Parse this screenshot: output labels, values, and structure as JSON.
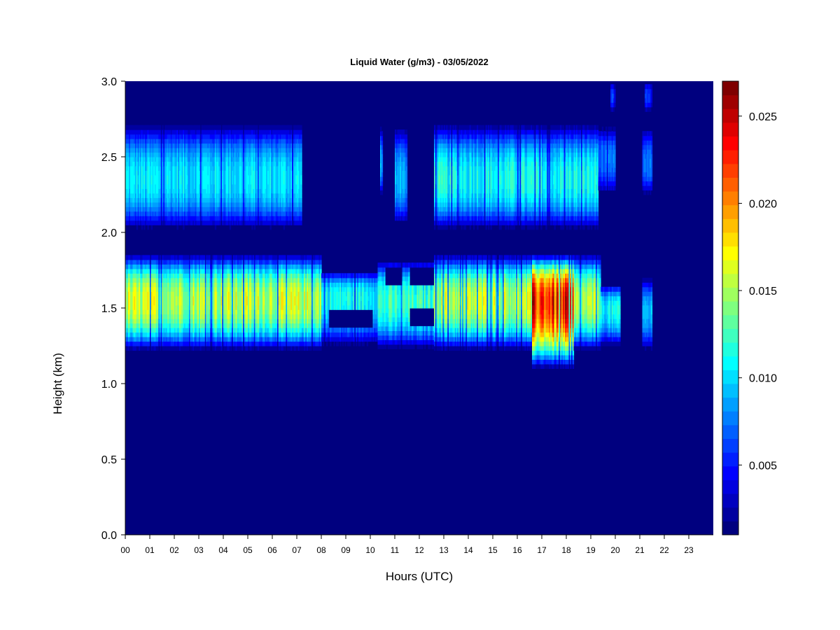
{
  "chart_data": {
    "type": "heatmap",
    "title": "Liquid Water (g/m3) - 03/05/2022",
    "xlabel": "Hours (UTC)",
    "ylabel": "Height (km)",
    "xlim": [
      0,
      24
    ],
    "ylim": [
      0.0,
      3.0
    ],
    "x_tick_labels": [
      "00",
      "01",
      "02",
      "03",
      "04",
      "05",
      "06",
      "07",
      "08",
      "09",
      "10",
      "11",
      "12",
      "13",
      "14",
      "15",
      "16",
      "17",
      "18",
      "19",
      "20",
      "21",
      "22",
      "23"
    ],
    "y_tick_labels": [
      "0.0",
      "0.5",
      "1.0",
      "1.5",
      "2.0",
      "2.5",
      "3.0"
    ],
    "y_ticks": [
      0.0,
      0.5,
      1.0,
      1.5,
      2.0,
      2.5,
      3.0
    ],
    "colorbar": {
      "min": 0.001,
      "max": 0.027,
      "levels": 26,
      "tick_values": [
        0.005,
        0.01,
        0.015,
        0.02,
        0.025
      ],
      "tick_labels": [
        "0.005",
        "0.010",
        "0.015",
        "0.020",
        "0.025"
      ],
      "colors": [
        "#00007f",
        "#00009f",
        "#0000bf",
        "#0000df",
        "#0000ff",
        "#001fff",
        "#003fff",
        "#005fff",
        "#007fff",
        "#009fff",
        "#00bfff",
        "#00dfff",
        "#00ffff",
        "#1fffdf",
        "#3fffbf",
        "#5fff9f",
        "#7fff7f",
        "#9fff5f",
        "#bfff3f",
        "#dfff1f",
        "#ffff00",
        "#ffdf00",
        "#ffbf00",
        "#ff9f00",
        "#ff7f00",
        "#ff5f00",
        "#ff3f00",
        "#ff1f00",
        "#ff0000",
        "#df0000",
        "#bf0000",
        "#9f0000",
        "#7f0000"
      ]
    },
    "background_color": "#00007f",
    "cloud_layers": [
      {
        "name": "upper",
        "hour_start": 0.0,
        "hour_end": 7.2,
        "height_bottom": 2.02,
        "height_top": 2.72,
        "peak_height": 2.35,
        "peak_value": 0.0115
      },
      {
        "name": "upper",
        "hour_start": 10.4,
        "hour_end": 10.5,
        "height_bottom": 2.25,
        "height_top": 2.7,
        "peak_height": 2.45,
        "peak_value": 0.01
      },
      {
        "name": "upper",
        "hour_start": 11.0,
        "hour_end": 11.5,
        "height_bottom": 2.05,
        "height_top": 2.7,
        "peak_height": 2.35,
        "peak_value": 0.01
      },
      {
        "name": "upper",
        "hour_start": 12.6,
        "hour_end": 19.3,
        "height_bottom": 2.02,
        "height_top": 2.72,
        "peak_height": 2.35,
        "peak_value": 0.0125
      },
      {
        "name": "upper",
        "hour_start": 19.3,
        "hour_end": 20.0,
        "height_bottom": 2.25,
        "height_top": 2.7,
        "peak_height": 2.5,
        "peak_value": 0.008
      },
      {
        "name": "upper",
        "hour_start": 21.1,
        "hour_end": 21.5,
        "height_bottom": 2.25,
        "height_top": 2.7,
        "peak_height": 2.45,
        "peak_value": 0.008
      },
      {
        "name": "top",
        "hour_start": 19.8,
        "hour_end": 20.0,
        "height_bottom": 2.8,
        "height_top": 3.0,
        "peak_height": 2.9,
        "peak_value": 0.007
      },
      {
        "name": "top",
        "hour_start": 21.2,
        "hour_end": 21.5,
        "height_bottom": 2.8,
        "height_top": 3.0,
        "peak_height": 2.9,
        "peak_value": 0.007
      },
      {
        "name": "lower",
        "hour_start": 0.0,
        "hour_end": 8.0,
        "height_bottom": 1.22,
        "height_top": 1.86,
        "peak_height": 1.55,
        "peak_value": 0.0175
      },
      {
        "name": "lower",
        "hour_start": 8.0,
        "hour_end": 10.3,
        "height_bottom": 1.25,
        "height_top": 1.75,
        "peak_height": 1.58,
        "peak_value": 0.0125
      },
      {
        "name": "lower",
        "hour_start": 10.3,
        "hour_end": 12.6,
        "height_bottom": 1.23,
        "height_top": 1.82,
        "peak_height": 1.55,
        "peak_value": 0.0135
      },
      {
        "name": "lower",
        "hour_start": 12.6,
        "hour_end": 16.6,
        "height_bottom": 1.22,
        "height_top": 1.86,
        "peak_height": 1.55,
        "peak_value": 0.0175
      },
      {
        "name": "lower",
        "hour_start": 16.6,
        "hour_end": 18.3,
        "height_bottom": 1.1,
        "height_top": 1.86,
        "peak_height": 1.55,
        "peak_value": 0.0255
      },
      {
        "name": "lower",
        "hour_start": 18.3,
        "hour_end": 19.4,
        "height_bottom": 1.22,
        "height_top": 1.86,
        "peak_height": 1.55,
        "peak_value": 0.0165
      },
      {
        "name": "lower",
        "hour_start": 19.4,
        "hour_end": 20.2,
        "height_bottom": 1.25,
        "height_top": 1.66,
        "peak_height": 1.5,
        "peak_value": 0.012
      },
      {
        "name": "lower",
        "hour_start": 21.1,
        "hour_end": 21.5,
        "height_bottom": 1.22,
        "height_top": 1.7,
        "peak_height": 1.48,
        "peak_value": 0.01
      }
    ],
    "gaps": [
      {
        "hour_start": 8.3,
        "hour_end": 10.1,
        "height_bottom": 1.38,
        "height_top": 1.5
      },
      {
        "hour_start": 11.6,
        "hour_end": 12.6,
        "height_bottom": 1.38,
        "height_top": 1.5
      },
      {
        "hour_start": 10.6,
        "hour_end": 11.3,
        "height_bottom": 1.65,
        "height_top": 1.78
      },
      {
        "hour_start": 11.6,
        "hour_end": 12.6,
        "height_bottom": 1.65,
        "height_top": 1.78
      }
    ]
  }
}
